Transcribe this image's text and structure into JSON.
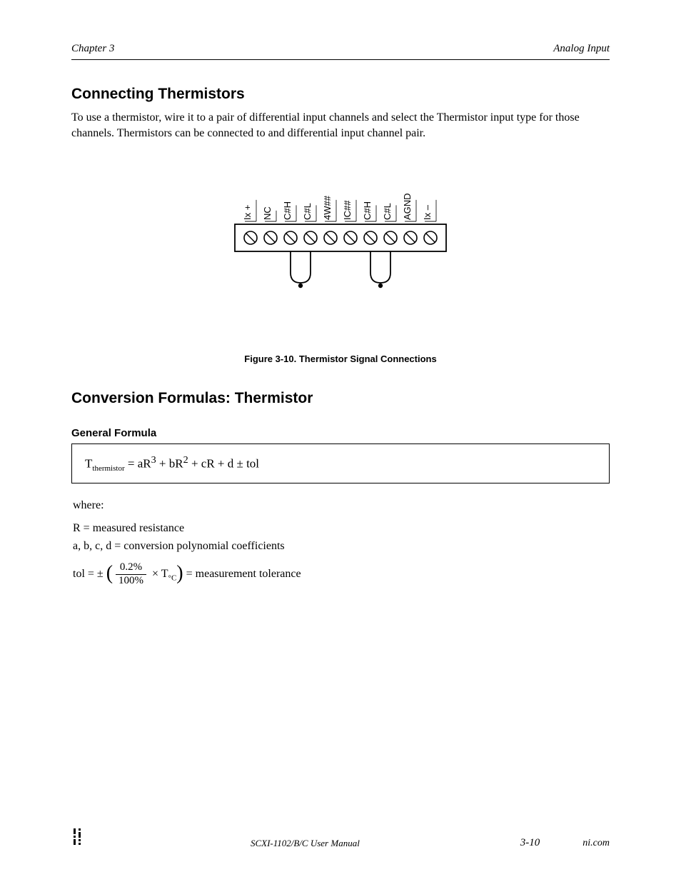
{
  "header": {
    "chapter": "Chapter 3",
    "title": "Analog Input"
  },
  "section1": {
    "heading": "Connecting Thermistors",
    "body": "To use a thermistor, wire it to a pair of differential input channels and select the Thermistor input type for those channels. Thermistors can be connected to and differential input channel pair.",
    "figure_caption": "Figure 3-10.  Thermistor Signal Connections"
  },
  "connector": {
    "type": "diagram",
    "labels": [
      "Ix +",
      "NC",
      "C#H",
      "C#L",
      "4W##",
      "IC##",
      "C#H",
      "C#L",
      "AGND",
      "Ix –"
    ],
    "screw_count": 10,
    "wire_pairs": [
      {
        "left_slot": 2,
        "right_slot": 3
      },
      {
        "left_slot": 6,
        "right_slot": 7
      }
    ],
    "colors": {
      "stroke": "#000000",
      "screw_stroke": "#000000",
      "background": "#ffffff",
      "label_fontsize": 13
    }
  },
  "section2": {
    "heading": "Conversion Formulas: Thermistor",
    "formula_label": "General Formula",
    "formula_parts": {
      "lhs": "T",
      "lhs_sub": "thermistor",
      "rhs_a": " = aR",
      "rhs_a_sup": "3",
      "rhs_b": " + bR",
      "rhs_b_sup": "2",
      "rhs_c": " + cR + d ± tol"
    },
    "where_label": "where:",
    "where_rows": [
      {
        "prefix": "R",
        "eq": " = measured resistance"
      },
      {
        "prefix": "a, b, c, d",
        "eq": " = conversion polynomial coefficients"
      },
      {
        "prefix": "tol",
        "eq_prefix": " =  ± ",
        "fraction": {
          "num": "0.2%",
          "den": "100%"
        },
        "between": " × T",
        "paren_label": "°C",
        "suffix": " = measurement tolerance"
      }
    ]
  },
  "footer": {
    "center": "SCXI-1102/B/C User Manual",
    "page": "3-10",
    "link": "ni.com"
  }
}
